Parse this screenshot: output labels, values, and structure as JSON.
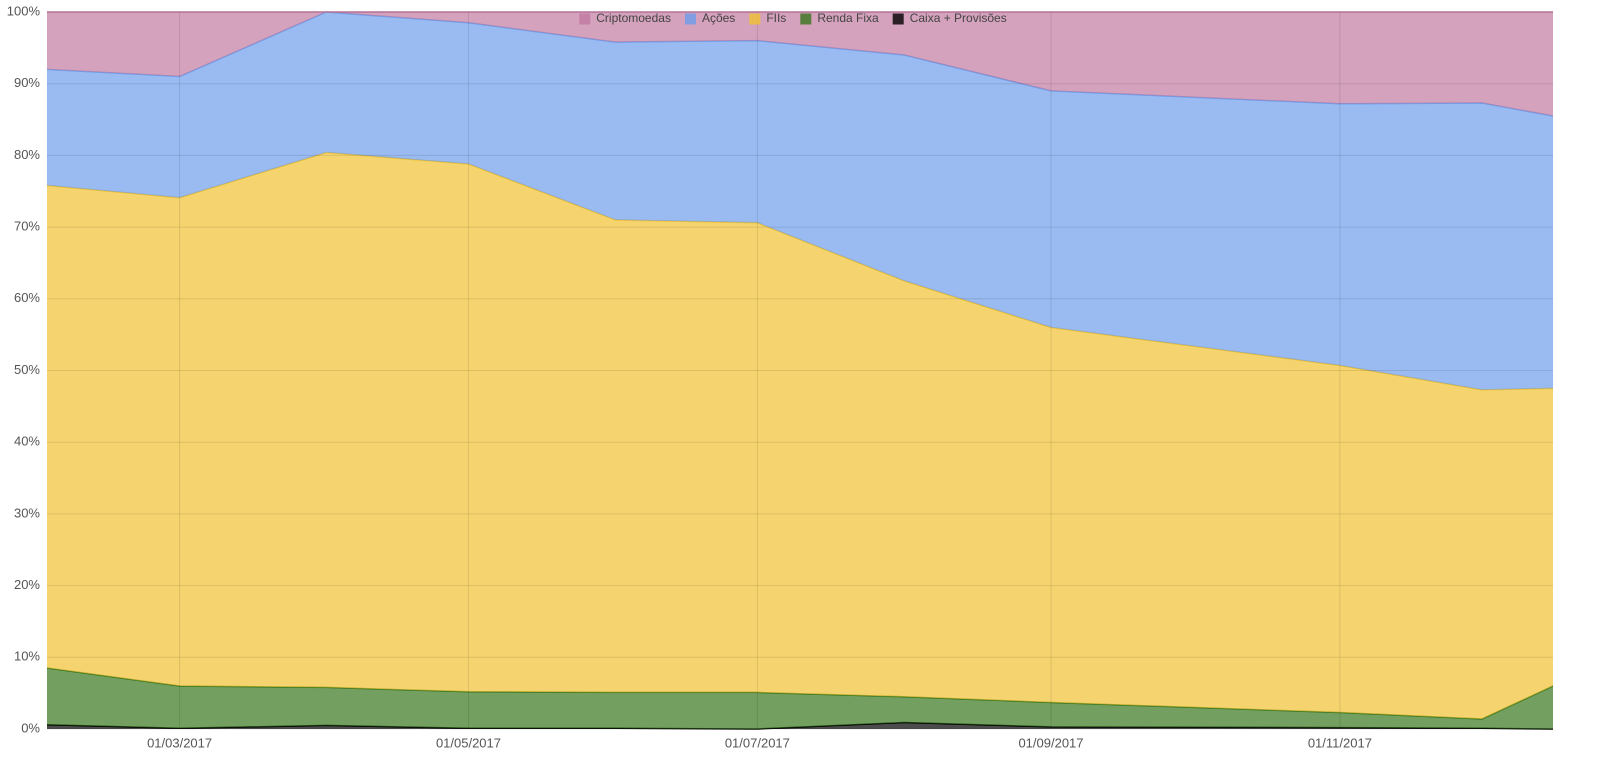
{
  "chart_data": {
    "type": "area",
    "stacked": true,
    "x": [
      "01/02/2017",
      "01/03/2017",
      "01/04/2017",
      "01/05/2017",
      "01/06/2017",
      "01/07/2017",
      "01/08/2017",
      "01/09/2017",
      "01/11/2017",
      "01/12/2017",
      "16/12/2017"
    ],
    "xticks": [
      "01/03/2017",
      "01/05/2017",
      "01/07/2017",
      "01/09/2017",
      "01/11/2017"
    ],
    "series": [
      {
        "name": "Criptomoedas",
        "color": "#c27ba0",
        "values": [
          8,
          9,
          0,
          1.5,
          4.2,
          4,
          6,
          11,
          12.8,
          12.7,
          14.5
        ]
      },
      {
        "name": "Ações",
        "color": "#6d9eeb",
        "values": [
          16.2,
          16.9,
          19.6,
          19.7,
          24.8,
          25.4,
          31.5,
          33,
          36.5,
          40,
          38
        ]
      },
      {
        "name": "FIIs",
        "color": "#f1c232",
        "values": [
          67.3,
          68.1,
          74.6,
          73.6,
          65.9,
          65.5,
          58,
          52.3,
          48.4,
          45.9,
          41.5
        ]
      },
      {
        "name": "Renda Fixa",
        "color": "#38761d",
        "values": [
          7.9,
          5.9,
          5.3,
          5.1,
          5,
          5.1,
          3.6,
          3.4,
          2.1,
          1.3,
          6
        ]
      },
      {
        "name": "Caixa + Provisões",
        "color": "#000000",
        "values": [
          0.6,
          0.1,
          0.5,
          0.1,
          0.1,
          0,
          0.9,
          0.3,
          0.2,
          0.1,
          0
        ]
      }
    ],
    "ylim": [
      0,
      100
    ],
    "yticks": [
      {
        "value": 0,
        "label": "0%"
      },
      {
        "value": 10,
        "label": "10%"
      },
      {
        "value": 20,
        "label": "20%"
      },
      {
        "value": 30,
        "label": "30%"
      },
      {
        "value": 40,
        "label": "40%"
      },
      {
        "value": 50,
        "label": "50%"
      },
      {
        "value": 60,
        "label": "60%"
      },
      {
        "value": 70,
        "label": "70%"
      },
      {
        "value": 80,
        "label": "80%"
      },
      {
        "value": 90,
        "label": "90%"
      },
      {
        "value": 100,
        "label": "100%"
      }
    ],
    "grid": true,
    "legend": "top"
  }
}
